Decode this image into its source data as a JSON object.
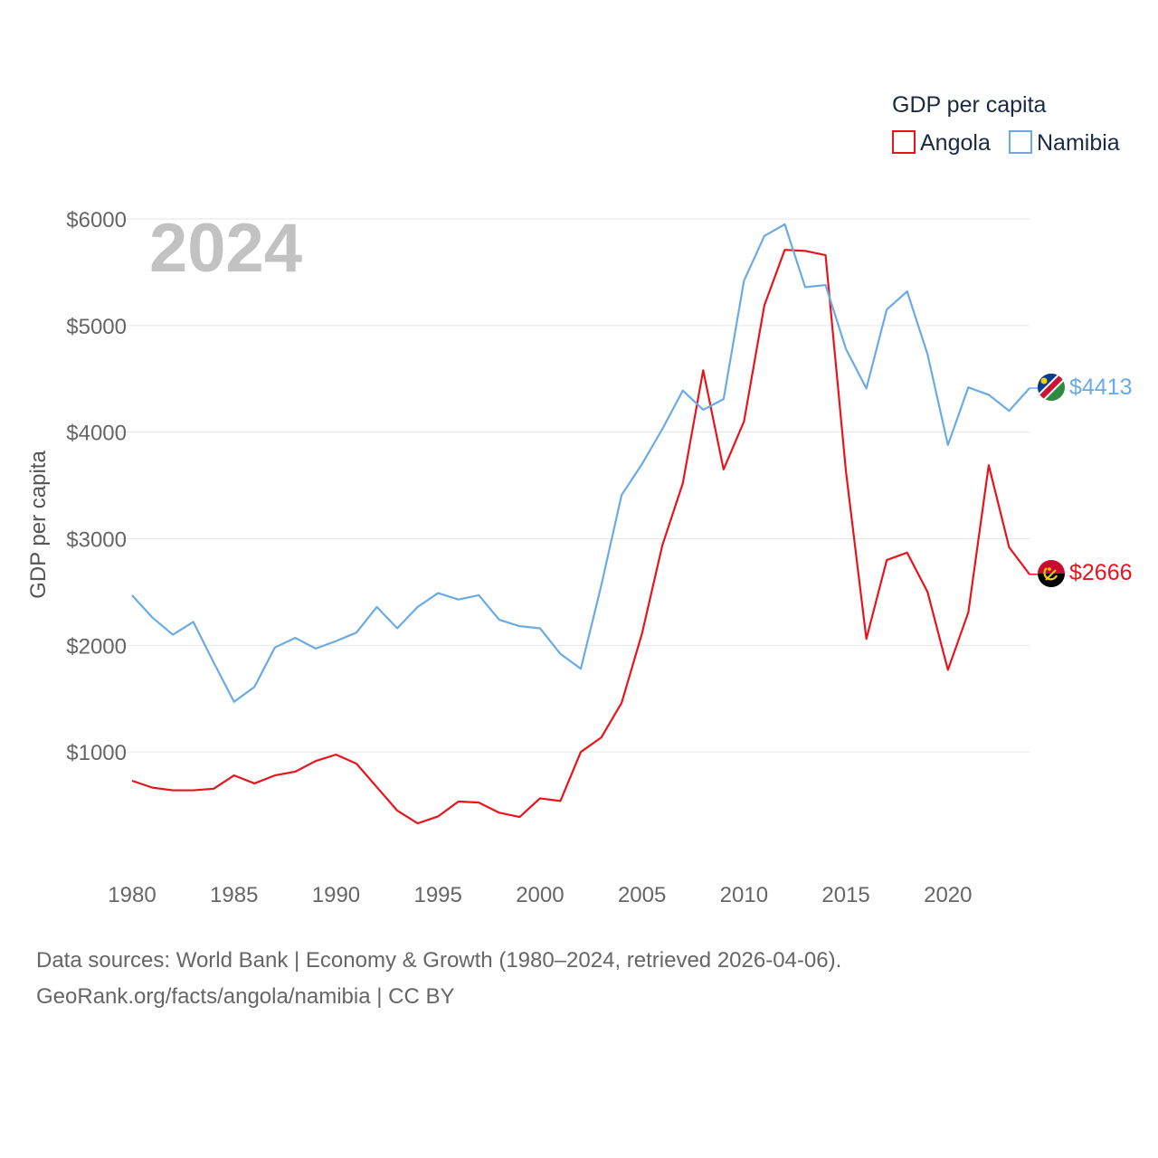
{
  "chart_data": {
    "type": "line",
    "current_year_label": "2024",
    "ylabel": "GDP per capita",
    "ylim": [
      0,
      6000
    ],
    "xlim": [
      1980,
      2024
    ],
    "x_ticks": [
      1980,
      1985,
      1990,
      1995,
      2000,
      2005,
      2010,
      2015,
      2020
    ],
    "y_ticks": [
      {
        "value": 1000,
        "label": "$1000"
      },
      {
        "value": 2000,
        "label": "$2000"
      },
      {
        "value": 3000,
        "label": "$3000"
      },
      {
        "value": 4000,
        "label": "$4000"
      },
      {
        "value": 5000,
        "label": "$5000"
      },
      {
        "value": 6000,
        "label": "$6000"
      }
    ],
    "legend": {
      "title": "GDP per capita",
      "position": "top-right"
    },
    "x": [
      1980,
      1981,
      1982,
      1983,
      1984,
      1985,
      1986,
      1987,
      1988,
      1989,
      1990,
      1991,
      1992,
      1993,
      1994,
      1995,
      1996,
      1997,
      1998,
      1999,
      2000,
      2001,
      2002,
      2003,
      2004,
      2005,
      2006,
      2007,
      2008,
      2009,
      2010,
      2011,
      2012,
      2013,
      2014,
      2015,
      2016,
      2017,
      2018,
      2019,
      2020,
      2021,
      2022,
      2023,
      2024
    ],
    "series": [
      {
        "name": "Angola",
        "color": "#e8141b",
        "end_label": "$2666",
        "flag": "angola-flag",
        "values": [
          730,
          665,
          640,
          640,
          655,
          780,
          705,
          780,
          815,
          915,
          975,
          890,
          670,
          450,
          330,
          395,
          535,
          525,
          430,
          390,
          565,
          540,
          1000,
          1135,
          1460,
          2110,
          2940,
          3520,
          4580,
          3650,
          4100,
          5190,
          5710,
          5700,
          5660,
          3630,
          2060,
          2800,
          2870,
          2500,
          1770,
          2310,
          3690,
          2920,
          2666
        ]
      },
      {
        "name": "Namibia",
        "color": "#6aabe6",
        "end_label": "$4413",
        "flag": "namibia-flag",
        "values": [
          2470,
          2260,
          2100,
          2220,
          1840,
          1470,
          1610,
          1980,
          2070,
          1970,
          2040,
          2120,
          2360,
          2160,
          2360,
          2490,
          2430,
          2470,
          2240,
          2180,
          2160,
          1920,
          1780,
          2560,
          3410,
          3700,
          4030,
          4390,
          4210,
          4310,
          5420,
          5840,
          5950,
          5360,
          5380,
          4780,
          4410,
          5150,
          5320,
          4730,
          3880,
          4420,
          4350,
          4200,
          4413
        ]
      }
    ]
  },
  "source": {
    "line1": "Data sources: World Bank | Economy & Growth (1980–2024, retrieved 2026-04-06).",
    "line2": "GeoRank.org/facts/angola/namibia | CC BY"
  }
}
